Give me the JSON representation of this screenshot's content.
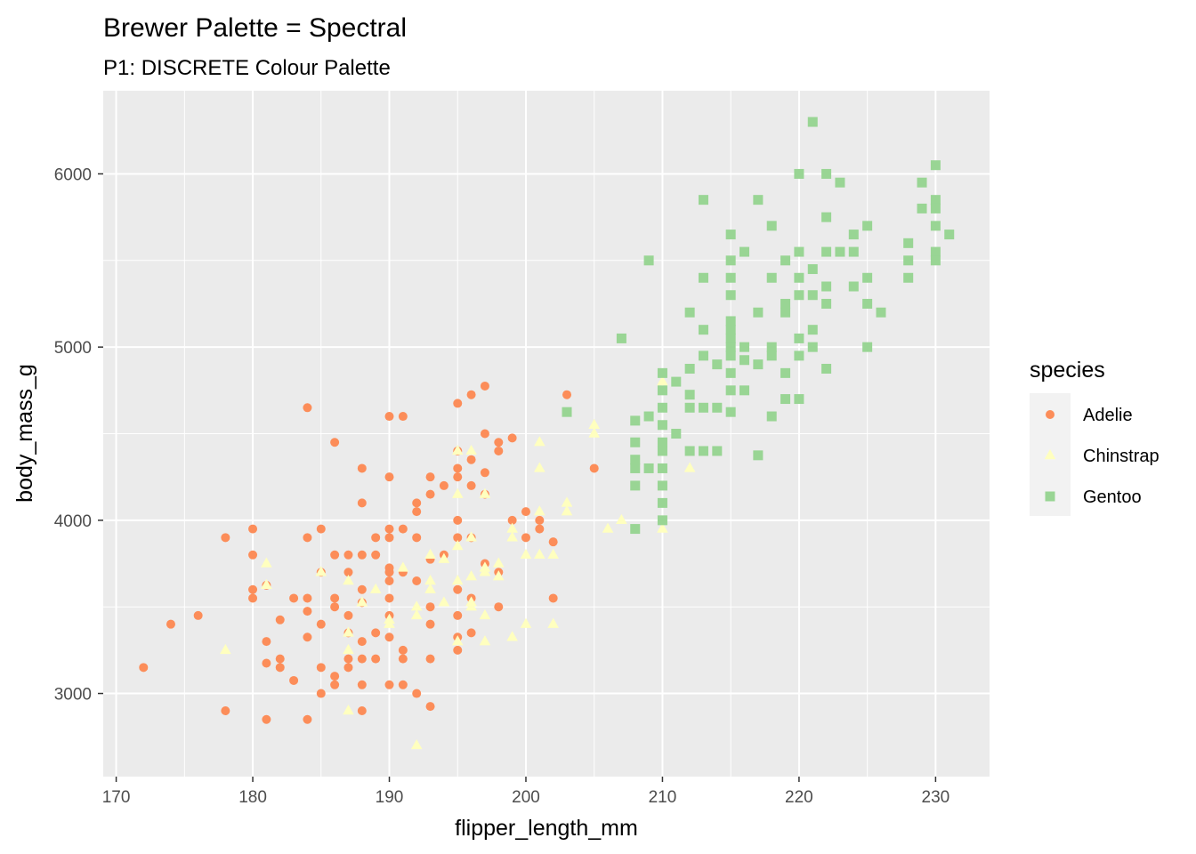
{
  "title": "Brewer Palette = Spectral",
  "subtitle": "P1: DISCRETE Colour Palette",
  "chart_data": {
    "type": "scatter",
    "title": "Brewer Palette = Spectral",
    "subtitle": "P1: DISCRETE Colour Palette",
    "xlabel": "flipper_length_mm",
    "ylabel": "body_mass_g",
    "xlim": [
      169.05,
      233.95
    ],
    "ylim": [
      2520,
      6480
    ],
    "x_ticks": [
      170,
      180,
      190,
      200,
      210,
      220,
      230
    ],
    "y_ticks": [
      3000,
      4000,
      5000,
      6000
    ],
    "grid": true,
    "background": "#ebebeb",
    "legend": {
      "title": "species",
      "position": "right"
    },
    "series": [
      {
        "name": "Adelie",
        "color": "#fc8d59",
        "shape": "circle",
        "points": [
          [
            172,
            3150
          ],
          [
            174,
            3400
          ],
          [
            176,
            3450
          ],
          [
            178,
            3900
          ],
          [
            178,
            2900
          ],
          [
            180,
            3950
          ],
          [
            180,
            3800
          ],
          [
            180,
            3600
          ],
          [
            180,
            3550
          ],
          [
            181,
            3625
          ],
          [
            181,
            3300
          ],
          [
            181,
            3175
          ],
          [
            181,
            2850
          ],
          [
            182,
            3425
          ],
          [
            182,
            3200
          ],
          [
            182,
            3150
          ],
          [
            183,
            3550
          ],
          [
            183,
            3075
          ],
          [
            184,
            4650
          ],
          [
            184,
            3900
          ],
          [
            184,
            3550
          ],
          [
            184,
            3475
          ],
          [
            184,
            3325
          ],
          [
            184,
            2850
          ],
          [
            185,
            3950
          ],
          [
            185,
            3700
          ],
          [
            185,
            3400
          ],
          [
            185,
            3150
          ],
          [
            185,
            3000
          ],
          [
            186,
            4450
          ],
          [
            186,
            3800
          ],
          [
            186,
            3550
          ],
          [
            186,
            3500
          ],
          [
            186,
            3100
          ],
          [
            186,
            3050
          ],
          [
            187,
            3800
          ],
          [
            187,
            3700
          ],
          [
            187,
            3450
          ],
          [
            187,
            3350
          ],
          [
            187,
            3200
          ],
          [
            187,
            3150
          ],
          [
            188,
            4300
          ],
          [
            188,
            4100
          ],
          [
            188,
            3800
          ],
          [
            188,
            3600
          ],
          [
            188,
            3525
          ],
          [
            188,
            3300
          ],
          [
            188,
            3200
          ],
          [
            188,
            3050
          ],
          [
            188,
            2900
          ],
          [
            189,
            3900
          ],
          [
            189,
            3800
          ],
          [
            189,
            3200
          ],
          [
            189,
            3350
          ],
          [
            190,
            4600
          ],
          [
            190,
            4250
          ],
          [
            190,
            3950
          ],
          [
            190,
            3900
          ],
          [
            190,
            3725
          ],
          [
            190,
            3700
          ],
          [
            190,
            3650
          ],
          [
            190,
            3550
          ],
          [
            190,
            3450
          ],
          [
            190,
            3325
          ],
          [
            190,
            3050
          ],
          [
            191,
            4600
          ],
          [
            191,
            3950
          ],
          [
            191,
            3700
          ],
          [
            191,
            3250
          ],
          [
            191,
            3200
          ],
          [
            191,
            3050
          ],
          [
            192,
            4100
          ],
          [
            192,
            4050
          ],
          [
            192,
            3900
          ],
          [
            192,
            3650
          ],
          [
            192,
            3000
          ],
          [
            193,
            4250
          ],
          [
            193,
            4150
          ],
          [
            193,
            3775
          ],
          [
            193,
            3500
          ],
          [
            193,
            3400
          ],
          [
            193,
            3200
          ],
          [
            193,
            2925
          ],
          [
            194,
            4200
          ],
          [
            194,
            3800
          ],
          [
            195,
            4675
          ],
          [
            195,
            4400
          ],
          [
            195,
            4300
          ],
          [
            195,
            4250
          ],
          [
            195,
            4000
          ],
          [
            195,
            3900
          ],
          [
            195,
            3600
          ],
          [
            195,
            3450
          ],
          [
            195,
            3325
          ],
          [
            195,
            3250
          ],
          [
            196,
            4725
          ],
          [
            196,
            4350
          ],
          [
            196,
            4200
          ],
          [
            196,
            3900
          ],
          [
            196,
            3550
          ],
          [
            196,
            3350
          ],
          [
            197,
            4775
          ],
          [
            197,
            4500
          ],
          [
            197,
            4275
          ],
          [
            197,
            4150
          ],
          [
            197,
            3750
          ],
          [
            198,
            4450
          ],
          [
            198,
            4400
          ],
          [
            198,
            3700
          ],
          [
            198,
            3500
          ],
          [
            199,
            4475
          ],
          [
            199,
            4000
          ],
          [
            200,
            4050
          ],
          [
            200,
            3900
          ],
          [
            201,
            4000
          ],
          [
            201,
            3950
          ],
          [
            202,
            3875
          ],
          [
            202,
            3550
          ],
          [
            203,
            4725
          ],
          [
            205,
            4300
          ],
          [
            210,
            4000
          ]
        ]
      },
      {
        "name": "Chinstrap",
        "color": "#ffffbf",
        "shape": "triangle",
        "points": [
          [
            178,
            3250
          ],
          [
            181,
            3750
          ],
          [
            181,
            3625
          ],
          [
            185,
            3700
          ],
          [
            187,
            3650
          ],
          [
            187,
            3350
          ],
          [
            187,
            3250
          ],
          [
            187,
            2900
          ],
          [
            188,
            3525
          ],
          [
            189,
            3600
          ],
          [
            190,
            3425
          ],
          [
            190,
            3400
          ],
          [
            191,
            3725
          ],
          [
            192,
            3500
          ],
          [
            192,
            3450
          ],
          [
            192,
            2700
          ],
          [
            193,
            3800
          ],
          [
            193,
            3650
          ],
          [
            193,
            3600
          ],
          [
            194,
            3775
          ],
          [
            194,
            3525
          ],
          [
            195,
            4400
          ],
          [
            195,
            4150
          ],
          [
            195,
            3850
          ],
          [
            195,
            3650
          ],
          [
            195,
            3300
          ],
          [
            196,
            4400
          ],
          [
            196,
            3900
          ],
          [
            196,
            3675
          ],
          [
            196,
            3525
          ],
          [
            196,
            3500
          ],
          [
            197,
            4150
          ],
          [
            197,
            3725
          ],
          [
            197,
            3700
          ],
          [
            197,
            3450
          ],
          [
            197,
            3300
          ],
          [
            198,
            3750
          ],
          [
            198,
            3675
          ],
          [
            199,
            3950
          ],
          [
            199,
            3900
          ],
          [
            199,
            3325
          ],
          [
            200,
            3800
          ],
          [
            200,
            3400
          ],
          [
            201,
            4450
          ],
          [
            201,
            4300
          ],
          [
            201,
            4050
          ],
          [
            201,
            3800
          ],
          [
            202,
            3800
          ],
          [
            202,
            3400
          ],
          [
            203,
            4100
          ],
          [
            203,
            4050
          ],
          [
            205,
            4550
          ],
          [
            205,
            4500
          ],
          [
            206,
            3950
          ],
          [
            207,
            4000
          ],
          [
            210,
            4800
          ],
          [
            210,
            3950
          ],
          [
            212,
            4300
          ]
        ]
      },
      {
        "name": "Gentoo",
        "color": "#99d594",
        "shape": "square",
        "points": [
          [
            203,
            4625
          ],
          [
            207,
            5050
          ],
          [
            208,
            4575
          ],
          [
            208,
            4450
          ],
          [
            208,
            4350
          ],
          [
            208,
            4300
          ],
          [
            208,
            4200
          ],
          [
            208,
            3950
          ],
          [
            209,
            5500
          ],
          [
            209,
            4600
          ],
          [
            209,
            4300
          ],
          [
            210,
            4850
          ],
          [
            210,
            4750
          ],
          [
            210,
            4650
          ],
          [
            210,
            4550
          ],
          [
            210,
            4450
          ],
          [
            210,
            4400
          ],
          [
            210,
            4300
          ],
          [
            210,
            4200
          ],
          [
            210,
            4100
          ],
          [
            210,
            4000
          ],
          [
            211,
            4800
          ],
          [
            211,
            4500
          ],
          [
            212,
            5200
          ],
          [
            212,
            4875
          ],
          [
            212,
            4725
          ],
          [
            212,
            4650
          ],
          [
            212,
            4400
          ],
          [
            213,
            5850
          ],
          [
            213,
            5400
          ],
          [
            213,
            5100
          ],
          [
            213,
            4950
          ],
          [
            213,
            4650
          ],
          [
            213,
            4400
          ],
          [
            214,
            4900
          ],
          [
            214,
            4650
          ],
          [
            214,
            4400
          ],
          [
            215,
            5650
          ],
          [
            215,
            5500
          ],
          [
            215,
            5400
          ],
          [
            215,
            5300
          ],
          [
            215,
            5150
          ],
          [
            215,
            5100
          ],
          [
            215,
            5050
          ],
          [
            215,
            5000
          ],
          [
            215,
            4950
          ],
          [
            215,
            4850
          ],
          [
            215,
            4750
          ],
          [
            215,
            4625
          ],
          [
            216,
            5550
          ],
          [
            216,
            5000
          ],
          [
            216,
            4925
          ],
          [
            216,
            4750
          ],
          [
            217,
            5850
          ],
          [
            217,
            5200
          ],
          [
            217,
            4900
          ],
          [
            217,
            4375
          ],
          [
            218,
            5700
          ],
          [
            218,
            5400
          ],
          [
            218,
            5000
          ],
          [
            218,
            4950
          ],
          [
            218,
            4600
          ],
          [
            219,
            5500
          ],
          [
            219,
            5250
          ],
          [
            219,
            5200
          ],
          [
            219,
            4850
          ],
          [
            219,
            4700
          ],
          [
            220,
            6000
          ],
          [
            220,
            5550
          ],
          [
            220,
            5400
          ],
          [
            220,
            5300
          ],
          [
            220,
            5050
          ],
          [
            220,
            4950
          ],
          [
            220,
            4700
          ],
          [
            221,
            6300
          ],
          [
            221,
            5450
          ],
          [
            221,
            5300
          ],
          [
            221,
            5100
          ],
          [
            221,
            5000
          ],
          [
            222,
            6000
          ],
          [
            222,
            5750
          ],
          [
            222,
            5550
          ],
          [
            222,
            5350
          ],
          [
            222,
            5250
          ],
          [
            222,
            4875
          ],
          [
            223,
            5950
          ],
          [
            223,
            5550
          ],
          [
            224,
            5650
          ],
          [
            224,
            5550
          ],
          [
            224,
            5350
          ],
          [
            225,
            5700
          ],
          [
            225,
            5400
          ],
          [
            225,
            5250
          ],
          [
            225,
            5000
          ],
          [
            226,
            5200
          ],
          [
            228,
            5600
          ],
          [
            228,
            5500
          ],
          [
            228,
            5400
          ],
          [
            229,
            5950
          ],
          [
            229,
            5800
          ],
          [
            230,
            6050
          ],
          [
            230,
            5850
          ],
          [
            230,
            5800
          ],
          [
            230,
            5700
          ],
          [
            230,
            5550
          ],
          [
            230,
            5500
          ],
          [
            231,
            5650
          ]
        ]
      }
    ]
  },
  "legend": {
    "title": "species",
    "items": [
      "Adelie",
      "Chinstrap",
      "Gentoo"
    ]
  }
}
